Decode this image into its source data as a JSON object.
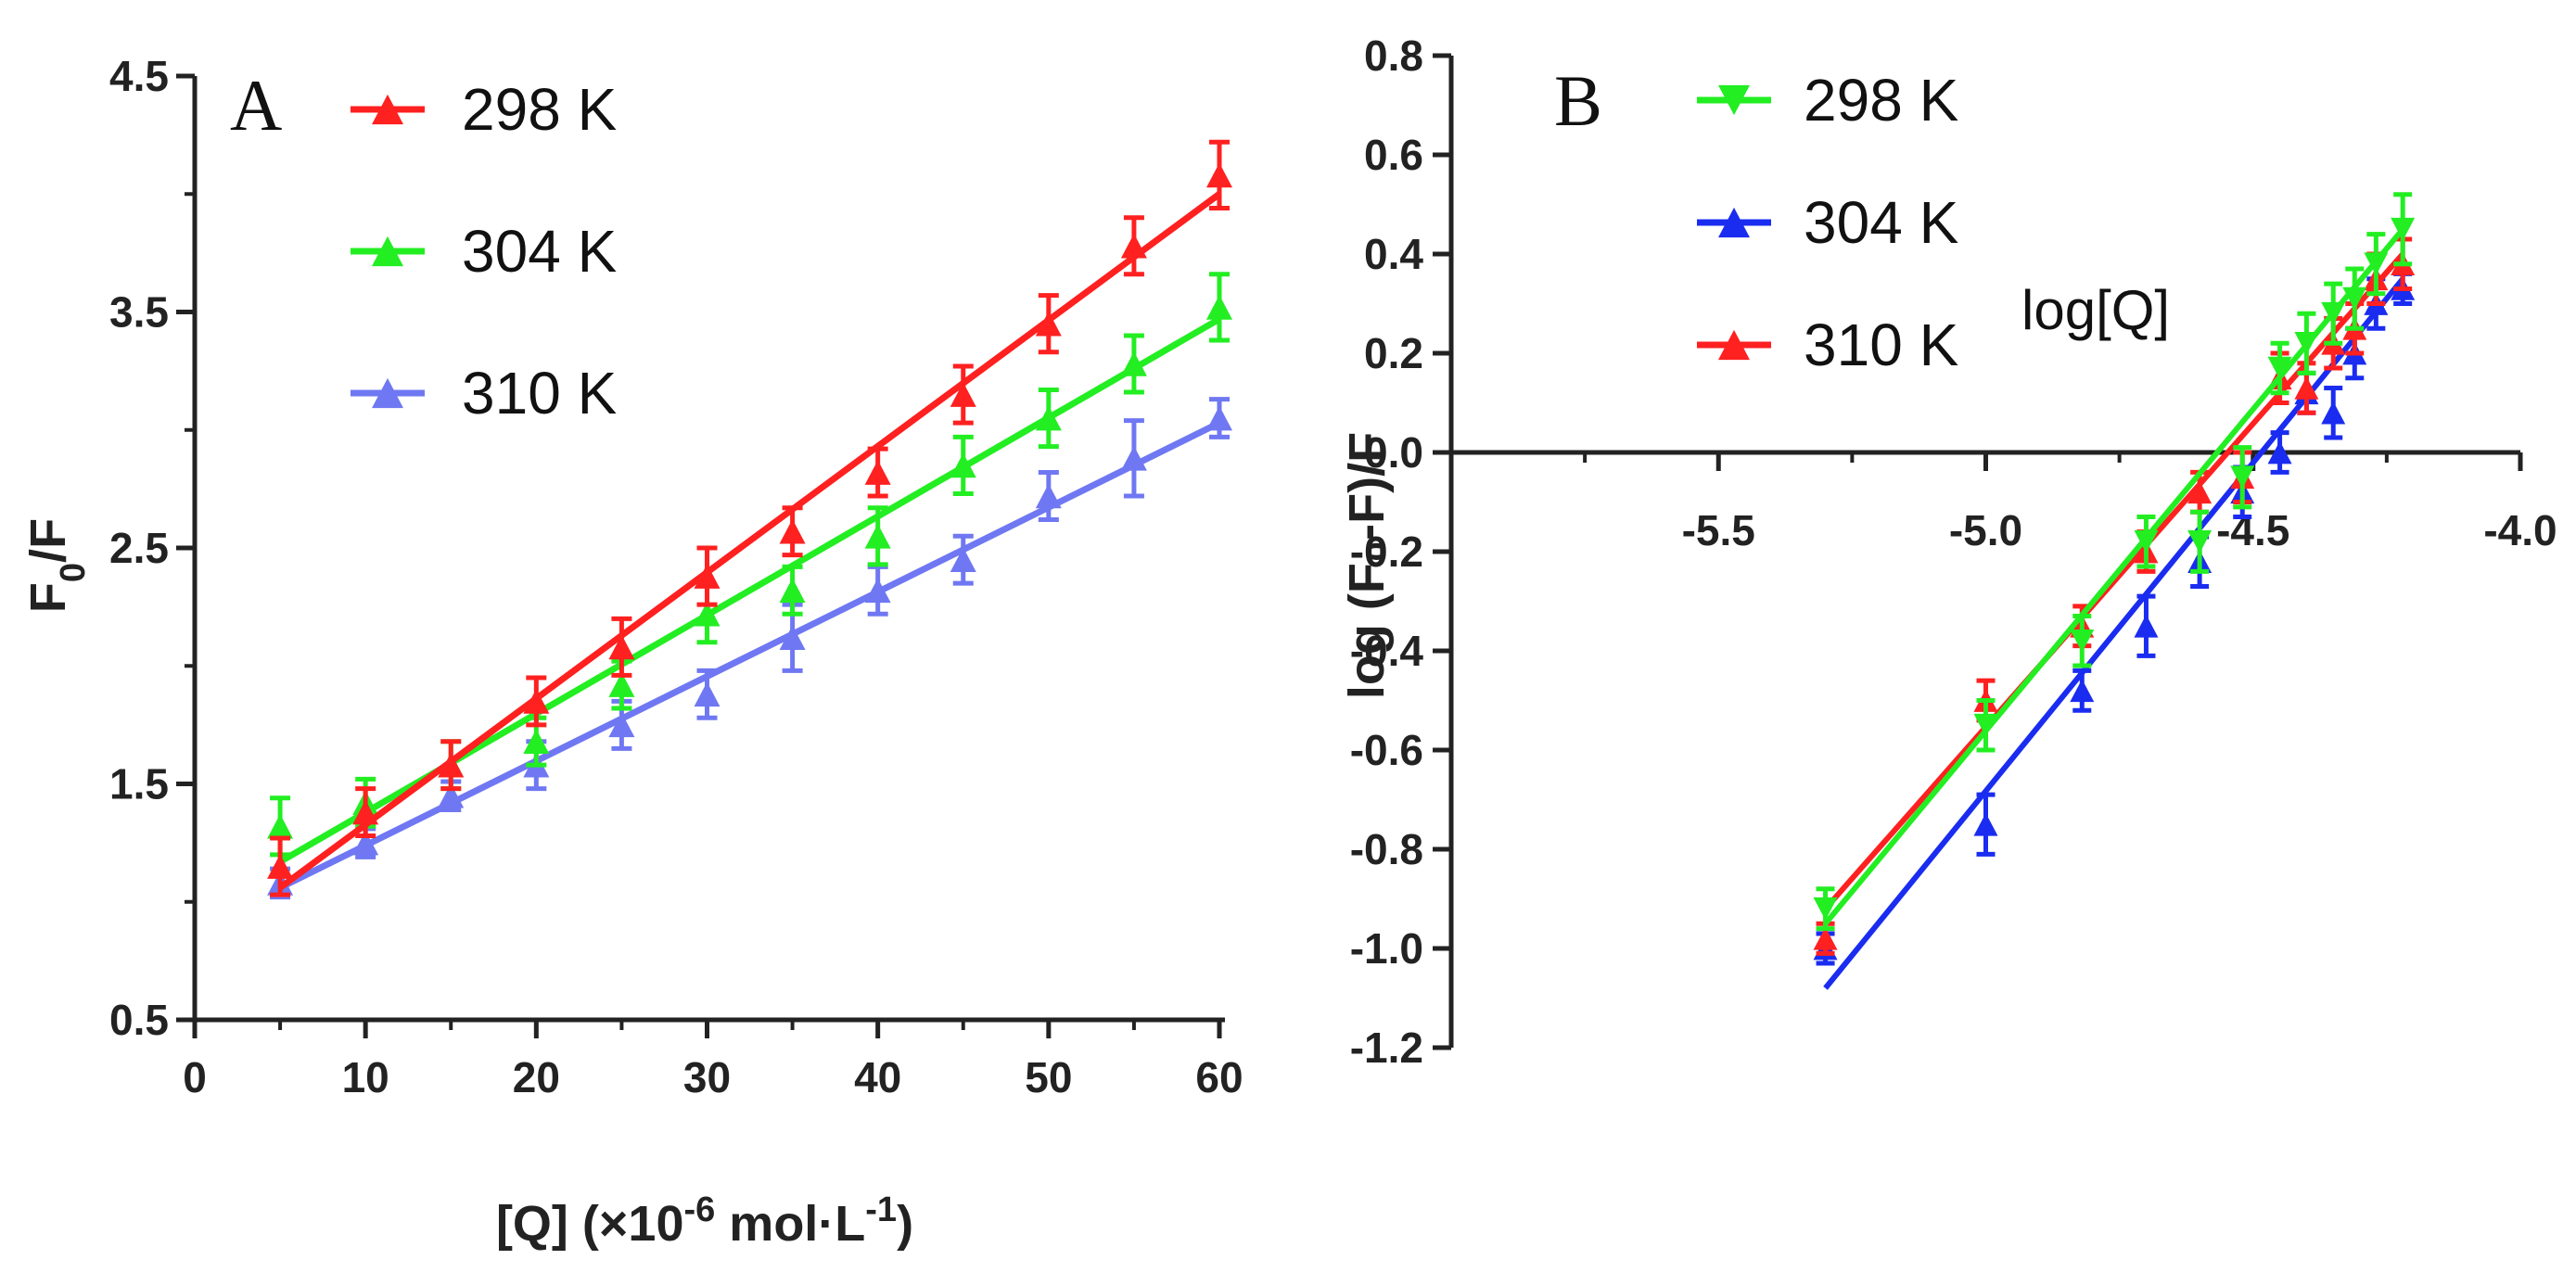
{
  "chart_data": [
    {
      "panel": "A",
      "type": "line",
      "ylabel_main": "F",
      "ylabel_sub": "0",
      "ylabel_rest": "/F",
      "xlabel_pre": "[Q] (×10",
      "xlabel_sup1": "-6",
      "xlabel_mid": " mol·L",
      "xlabel_sup2": "-1",
      "xlabel_post": ")",
      "xlim": [
        0,
        60
      ],
      "ylim": [
        0.5,
        4.5
      ],
      "xticks": [
        "0",
        "10",
        "20",
        "30",
        "40",
        "50",
        "60"
      ],
      "yticks": [
        "0.5",
        "1.5",
        "2.5",
        "3.5",
        "4.5"
      ],
      "x": [
        5,
        10,
        15,
        20,
        25,
        30,
        35,
        40,
        45,
        50,
        55,
        60
      ],
      "legend_position": "top-left",
      "series": [
        {
          "name": "298 K",
          "color": "#ff2020",
          "values": [
            1.15,
            1.38,
            1.58,
            1.85,
            2.08,
            2.38,
            2.57,
            2.82,
            3.15,
            3.45,
            3.78,
            4.08
          ],
          "errors": [
            0.12,
            0.1,
            0.1,
            0.1,
            0.12,
            0.12,
            0.1,
            0.1,
            0.12,
            0.12,
            0.12,
            0.14
          ],
          "fit": [
            1.06,
            4.0
          ]
        },
        {
          "name": "304 K",
          "color": "#22ee22",
          "values": [
            1.32,
            1.42,
            1.58,
            1.68,
            1.92,
            2.22,
            2.32,
            2.55,
            2.85,
            3.05,
            3.28,
            3.52
          ],
          "errors": [
            0.12,
            0.1,
            0.1,
            0.1,
            0.1,
            0.12,
            0.1,
            0.12,
            0.12,
            0.12,
            0.12,
            0.14
          ],
          "fit": [
            1.17,
            3.47
          ]
        },
        {
          "name": "310 K",
          "color": "#6f78f2",
          "values": [
            1.08,
            1.25,
            1.45,
            1.58,
            1.75,
            1.88,
            2.12,
            2.32,
            2.45,
            2.72,
            2.88,
            3.05
          ],
          "errors": [
            0.06,
            0.06,
            0.06,
            0.1,
            0.1,
            0.1,
            0.14,
            0.1,
            0.1,
            0.1,
            0.16,
            0.08
          ],
          "fit": [
            1.06,
            3.03
          ]
        }
      ]
    },
    {
      "panel": "B",
      "type": "line",
      "ylabel": "log (F₀-F)/F",
      "annotation": "log[Q]",
      "xlim": [
        -6.0,
        -4.0
      ],
      "ylim": [
        -1.2,
        0.8
      ],
      "xticks": [
        "-5.5",
        "-5.0",
        "-4.5",
        "-4.0"
      ],
      "xtick_values": [
        -5.5,
        -5.0,
        -4.5,
        -4.0
      ],
      "yticks": [
        "0.8",
        "0.6",
        "0.4",
        "0.2",
        "0.0",
        "-0.2",
        "-0.4",
        "-0.6",
        "-0.8",
        "-1.0",
        "-1.2"
      ],
      "x": [
        -5.3,
        -5.0,
        -4.82,
        -4.7,
        -4.6,
        -4.52,
        -4.45,
        -4.4,
        -4.35,
        -4.31,
        -4.27,
        -4.22
      ],
      "legend_position": "top-left",
      "series": [
        {
          "name": "298 K",
          "color": "#22ee22",
          "values": [
            -0.92,
            -0.55,
            -0.38,
            -0.18,
            -0.18,
            -0.05,
            0.17,
            0.22,
            0.28,
            0.31,
            0.38,
            0.45
          ],
          "errors": [
            0.04,
            0.05,
            0.05,
            0.05,
            0.06,
            0.06,
            0.05,
            0.06,
            0.06,
            0.06,
            0.06,
            0.07
          ],
          "fit": [
            -0.95,
            0.45
          ]
        },
        {
          "name": "304 K",
          "color": "#1a2cf0",
          "values": [
            -1.0,
            -0.75,
            -0.48,
            -0.35,
            -0.22,
            -0.08,
            0.0,
            0.12,
            0.08,
            0.2,
            0.3,
            0.33
          ],
          "errors": [
            0.03,
            0.06,
            0.04,
            0.06,
            0.05,
            0.05,
            0.04,
            0.04,
            0.05,
            0.05,
            0.05,
            0.03
          ],
          "fit": [
            -1.08,
            0.35
          ]
        },
        {
          "name": "310 K",
          "color": "#ff2020",
          "values": [
            -0.98,
            -0.5,
            -0.35,
            -0.2,
            -0.08,
            -0.05,
            0.15,
            0.13,
            0.22,
            0.25,
            0.35,
            0.38
          ],
          "errors": [
            0.03,
            0.04,
            0.04,
            0.04,
            0.04,
            0.05,
            0.05,
            0.05,
            0.05,
            0.05,
            0.05,
            0.05
          ],
          "fit": [
            -0.92,
            0.4
          ]
        }
      ]
    }
  ]
}
